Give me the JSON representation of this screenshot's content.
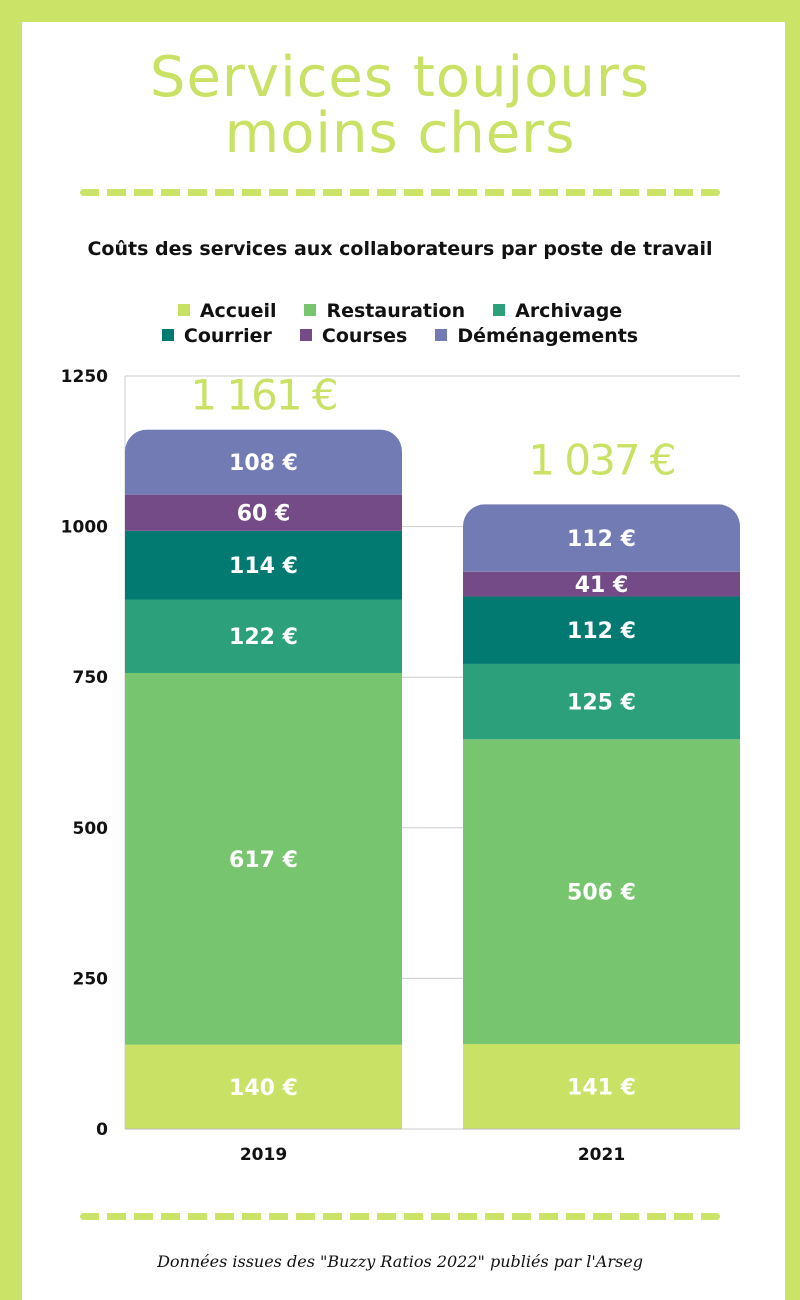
{
  "title": "Services toujours moins chers",
  "footer": "Données issues des \"Buzzy Ratios 2022\" publiés par l'Arseg",
  "chart_data": {
    "type": "bar",
    "stacked": true,
    "title": "Coûts des services aux collaborateurs par poste de travail",
    "categories": [
      "2019",
      "2021"
    ],
    "totals": [
      1161,
      1037
    ],
    "total_labels": [
      "1 161 €",
      "1 037 €"
    ],
    "series": [
      {
        "name": "Accueil",
        "color": "#c9e265",
        "values": [
          140,
          141
        ],
        "labels": [
          "140 €",
          "141 €"
        ]
      },
      {
        "name": "Restauration",
        "color": "#78c570",
        "values": [
          617,
          506
        ],
        "labels": [
          "617 €",
          "506 €"
        ]
      },
      {
        "name": "Archivage",
        "color": "#2ba07a",
        "values": [
          122,
          125
        ],
        "labels": [
          "122 €",
          "125 €"
        ]
      },
      {
        "name": "Courrier",
        "color": "#027a72",
        "values": [
          114,
          112
        ],
        "labels": [
          "114 €",
          "112 €"
        ]
      },
      {
        "name": "Courses",
        "color": "#744b87",
        "values": [
          60,
          41
        ],
        "labels": [
          "60 €",
          "41 €"
        ]
      },
      {
        "name": "Déménagements",
        "color": "#737bb5",
        "values": [
          108,
          112
        ],
        "labels": [
          "108 €",
          "112 €"
        ]
      }
    ],
    "ylim": [
      0,
      1250
    ],
    "yticks": [
      0,
      250,
      500,
      750,
      1000,
      1250
    ],
    "ytick_labels": [
      "0",
      "250",
      "500",
      "750",
      "1000",
      "1250"
    ],
    "grid": true,
    "legend_position": "top",
    "xlabel": "",
    "ylabel": ""
  }
}
